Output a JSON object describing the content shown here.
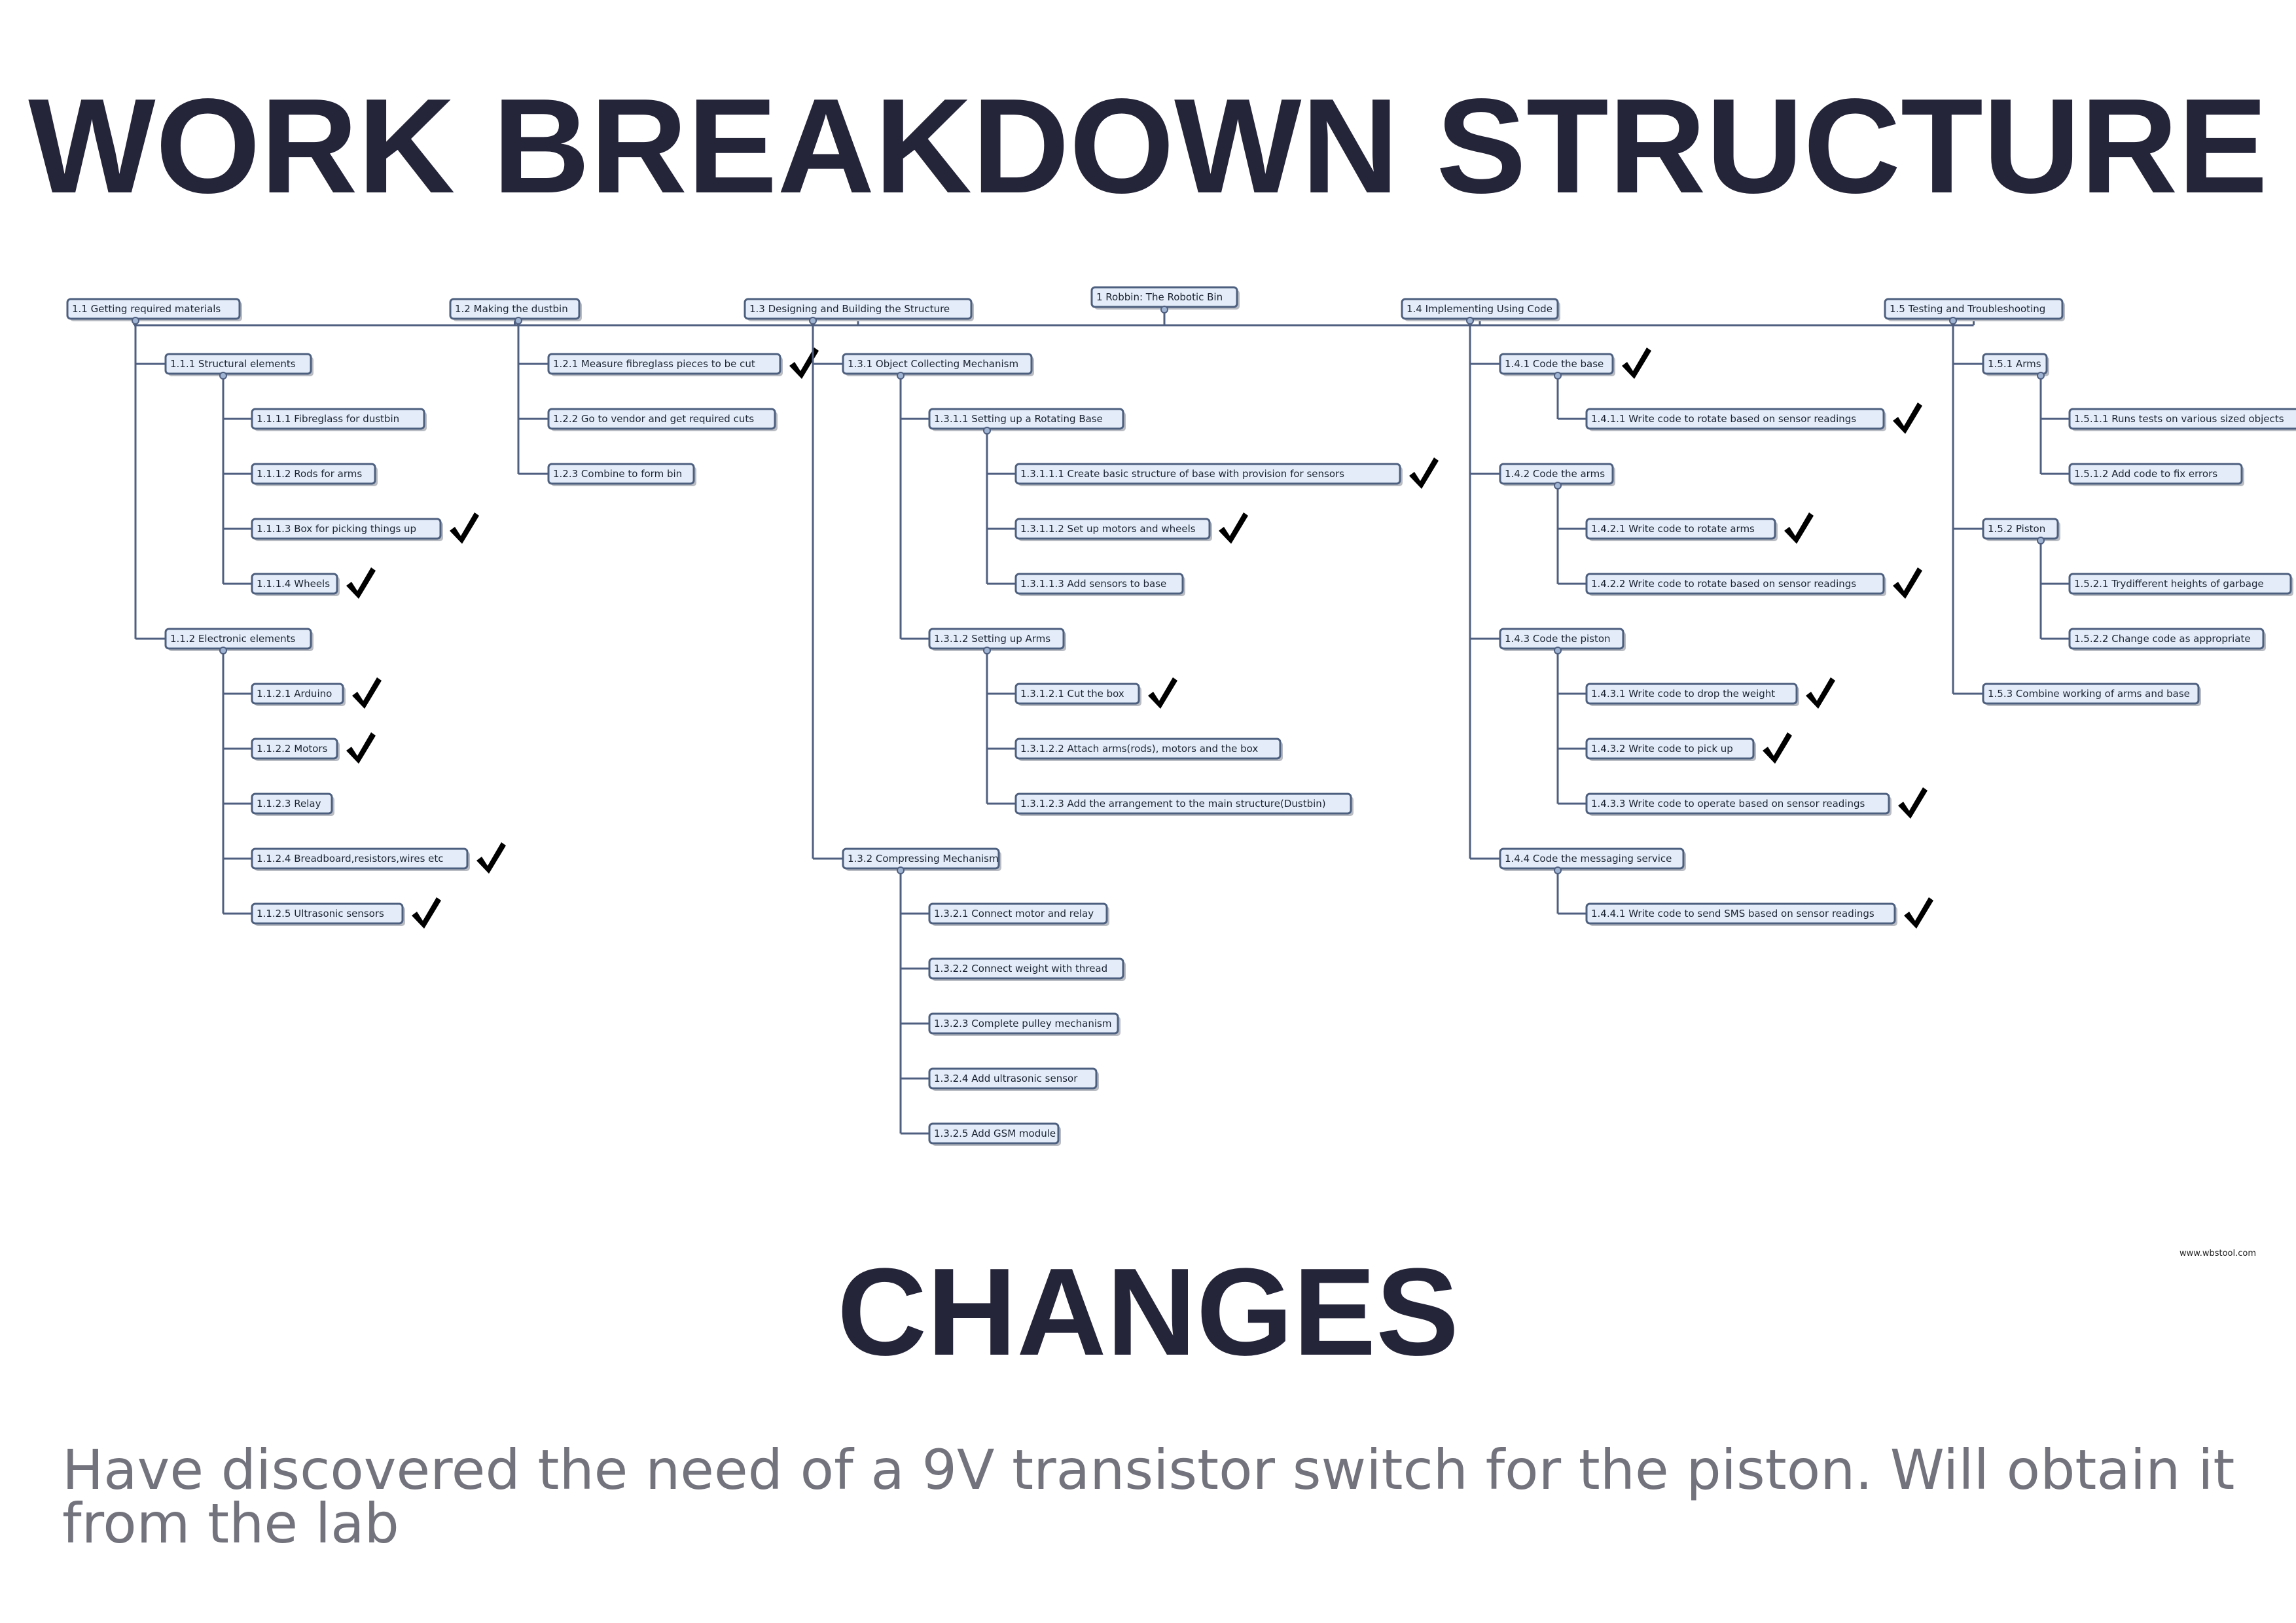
{
  "title": "WORK BREAKDOWN STRUCTURE",
  "changes": {
    "heading": "CHANGES",
    "text": "Have discovered the need of a 9V transistor switch for the piston. Will obtain it from the lab"
  },
  "watermark": "www.wbstool.com",
  "check_icon": "checkmark-icon",
  "wbs": {
    "label": "1 Robbin: The Robotic Bin",
    "children": [
      {
        "label": "1.1 Getting required materials",
        "children": [
          {
            "label": "1.1.1 Structural elements",
            "children": [
              {
                "label": "1.1.1.1 Fibreglass for dustbin"
              },
              {
                "label": "1.1.1.2 Rods for arms"
              },
              {
                "label": "1.1.1.3 Box for picking things up",
                "done": true
              },
              {
                "label": "1.1.1.4 Wheels",
                "done": true
              }
            ]
          },
          {
            "label": "1.1.2 Electronic elements",
            "children": [
              {
                "label": "1.1.2.1 Arduino",
                "done": true
              },
              {
                "label": "1.1.2.2 Motors",
                "done": true
              },
              {
                "label": "1.1.2.3 Relay"
              },
              {
                "label": "1.1.2.4 Breadboard,resistors,wires etc",
                "done": true
              },
              {
                "label": "1.1.2.5 Ultrasonic sensors",
                "done": true
              }
            ]
          }
        ]
      },
      {
        "label": "1.2 Making the dustbin",
        "children": [
          {
            "label": "1.2.1 Measure fibreglass pieces to be cut",
            "done": true
          },
          {
            "label": "1.2.2 Go to vendor and get required cuts"
          },
          {
            "label": "1.2.3 Combine to form bin"
          }
        ]
      },
      {
        "label": "1.3 Designing and Building the Structure",
        "children": [
          {
            "label": "1.3.1 Object Collecting Mechanism",
            "children": [
              {
                "label": "1.3.1.1 Setting up a Rotating Base",
                "children": [
                  {
                    "label": "1.3.1.1.1 Create basic  structure of base with  provision for sensors",
                    "done": true
                  },
                  {
                    "label": "1.3.1.1.2 Set up motors and wheels",
                    "done": true
                  },
                  {
                    "label": "1.3.1.1.3 Add sensors to base"
                  }
                ]
              },
              {
                "label": "1.3.1.2 Setting up Arms",
                "children": [
                  {
                    "label": "1.3.1.2.1 Cut the box",
                    "done": true
                  },
                  {
                    "label": "1.3.1.2.2 Attach arms(rods), motors and the box"
                  },
                  {
                    "label": "1.3.1.2.3 Add the arrangement to the main structure(Dustbin)"
                  }
                ]
              }
            ]
          },
          {
            "label": "1.3.2 Compressing Mechanism",
            "children": [
              {
                "label": "1.3.2.1 Connect motor and relay"
              },
              {
                "label": "1.3.2.2 Connect weight with thread"
              },
              {
                "label": "1.3.2.3 Complete pulley mechanism"
              },
              {
                "label": "1.3.2.4 Add ultrasonic sensor"
              },
              {
                "label": "1.3.2.5 Add GSM module"
              }
            ]
          }
        ]
      },
      {
        "label": "1.4 Implementing Using Code",
        "children": [
          {
            "label": "1.4.1 Code the base",
            "done": true,
            "children": [
              {
                "label": "1.4.1.1 Write code to rotate based on sensor readings",
                "done": true
              }
            ]
          },
          {
            "label": "1.4.2 Code the arms",
            "children": [
              {
                "label": "1.4.2.1 Write code to rotate arms",
                "done": true
              },
              {
                "label": "1.4.2.2 Write code to rotate based on sensor readings",
                "done": true
              }
            ]
          },
          {
            "label": "1.4.3 Code the piston",
            "children": [
              {
                "label": "1.4.3.1 Write code to drop the weight",
                "done": true
              },
              {
                "label": "1.4.3.2 Write code to pick up",
                "done": true
              },
              {
                "label": "1.4.3.3 Write code to operate based on sensor readings",
                "done": true
              }
            ]
          },
          {
            "label": "1.4.4 Code the messaging service",
            "children": [
              {
                "label": "1.4.4.1 Write code to send SMS based on sensor readings",
                "done": true
              }
            ]
          }
        ]
      },
      {
        "label": "1.5 Testing and Troubleshooting",
        "children": [
          {
            "label": "1.5.1 Arms",
            "children": [
              {
                "label": "1.5.1.1 Runs tests on various sized objects"
              },
              {
                "label": "1.5.1.2 Add code to fix errors"
              }
            ]
          },
          {
            "label": "1.5.2 Piston",
            "children": [
              {
                "label": "1.5.2.1 Trydifferent heights of garbage"
              },
              {
                "label": "1.5.2.2 Change code as appropriate"
              }
            ]
          },
          {
            "label": "1.5.3 Combine working of arms and base"
          }
        ]
      }
    ]
  }
}
